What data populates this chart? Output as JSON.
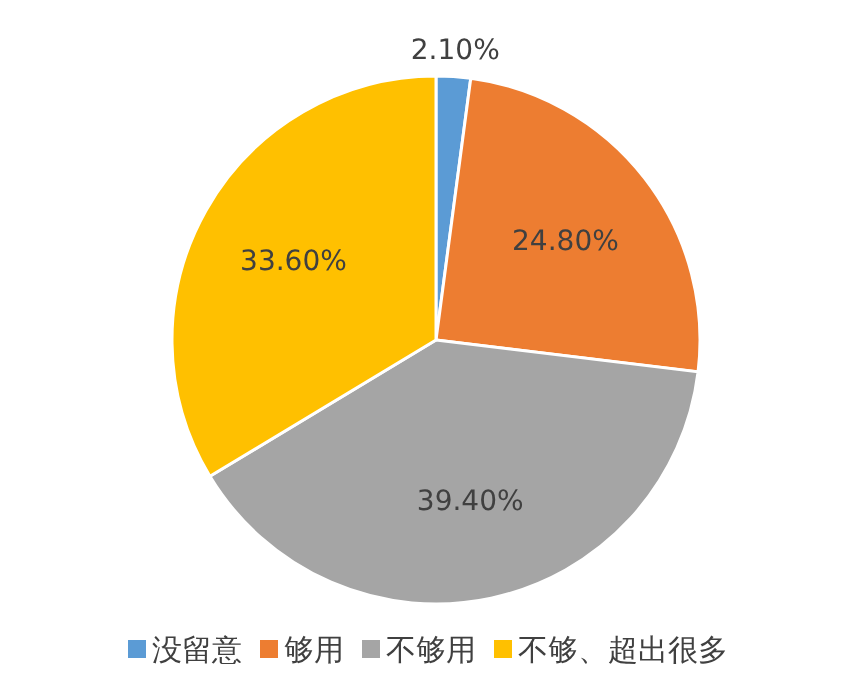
{
  "chart_data": {
    "type": "pie",
    "categories": [
      "没留意",
      "够用",
      "不够用",
      "不够、超出很多"
    ],
    "values": [
      2.1,
      24.8,
      39.4,
      33.6
    ],
    "colors": [
      "#5b9bd5",
      "#ed7d31",
      "#a5a5a5",
      "#ffc000"
    ],
    "value_labels": [
      "2.10%",
      "24.80%",
      "39.40%",
      "33.60%"
    ],
    "legend": "bottom"
  }
}
